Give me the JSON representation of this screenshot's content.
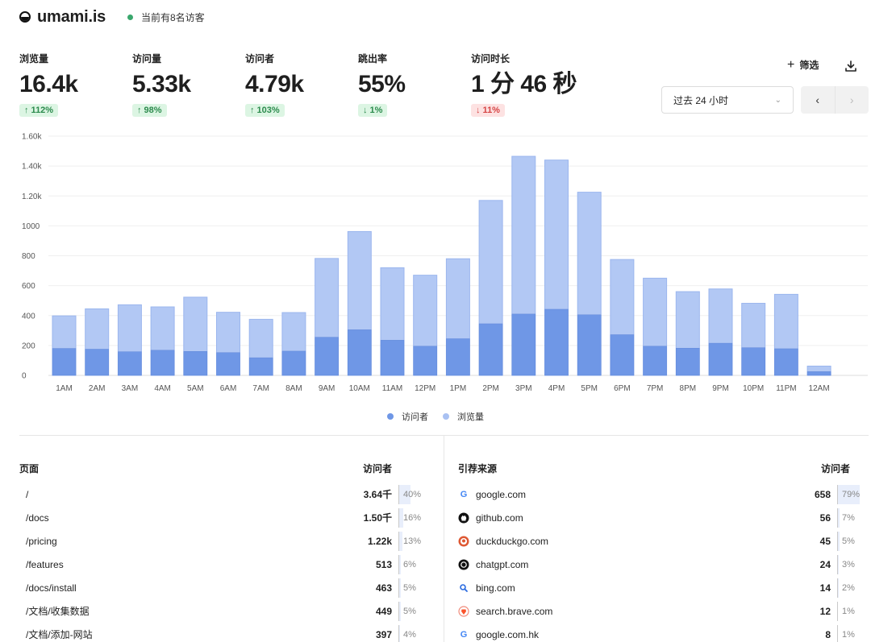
{
  "header": {
    "logo": "umami.is",
    "live": "当前有8名访客"
  },
  "metrics": [
    {
      "label": "浏览量",
      "value": "16.4k",
      "change": "↑ 112%",
      "dir": "up"
    },
    {
      "label": "访问量",
      "value": "5.33k",
      "change": "↑ 98%",
      "dir": "up"
    },
    {
      "label": "访问者",
      "value": "4.79k",
      "change": "↑ 103%",
      "dir": "up"
    },
    {
      "label": "跳出率",
      "value": "55%",
      "change": "↓ 1%",
      "dir": "up"
    },
    {
      "label": "访问时长",
      "value": "1 分 46 秒",
      "change": "↓ 11%",
      "dir": "down"
    }
  ],
  "controls": {
    "filter": "筛选",
    "filter_plus": "+",
    "date_range": "过去 24 小时",
    "prev": "‹",
    "next": "›"
  },
  "colors": {
    "visitors": "#6f97e6",
    "views": "#b2c8f4",
    "views_stroke": "#9bb6ee",
    "visitors_stroke": "#5f87d9"
  },
  "chart_data": {
    "type": "bar",
    "categories": [
      "1AM",
      "2AM",
      "3AM",
      "4AM",
      "5AM",
      "6AM",
      "7AM",
      "8AM",
      "9AM",
      "10AM",
      "11AM",
      "12PM",
      "1PM",
      "2PM",
      "3PM",
      "4PM",
      "5PM",
      "6PM",
      "7PM",
      "8PM",
      "9PM",
      "10PM",
      "11PM",
      "12AM"
    ],
    "series": [
      {
        "name": "访问者",
        "values": [
          180,
          175,
          158,
          168,
          160,
          152,
          118,
          162,
          255,
          305,
          235,
          195,
          245,
          345,
          410,
          442,
          405,
          272,
          195,
          182,
          215,
          185,
          178,
          25
        ]
      },
      {
        "name": "浏览量",
        "values": [
          398,
          445,
          472,
          458,
          523,
          422,
          375,
          420,
          782,
          962,
          720,
          670,
          780,
          1170,
          1465,
          1440,
          1225,
          775,
          650,
          560,
          578,
          482,
          542,
          62
        ]
      }
    ],
    "stacked": "overlay",
    "yticks": [
      "0",
      "200",
      "400",
      "600",
      "800",
      "1000",
      "1.20k",
      "1.40k",
      "1.60k"
    ],
    "ylim": [
      0,
      1600
    ],
    "grid": true,
    "legend": "bottom"
  },
  "pages": {
    "title": "页面",
    "col": "访问者",
    "rows": [
      {
        "label": "/",
        "count": "3.64千",
        "pct": "40%",
        "frac": 0.4
      },
      {
        "label": "/docs",
        "count": "1.50千",
        "pct": "16%",
        "frac": 0.16
      },
      {
        "label": "/pricing",
        "count": "1.22k",
        "pct": "13%",
        "frac": 0.13
      },
      {
        "label": "/features",
        "count": "513",
        "pct": "6%",
        "frac": 0.06
      },
      {
        "label": "/docs/install",
        "count": "463",
        "pct": "5%",
        "frac": 0.05
      },
      {
        "label": "/文档/收集数据",
        "count": "449",
        "pct": "5%",
        "frac": 0.05
      },
      {
        "label": "/文档/添加-网站",
        "count": "397",
        "pct": "4%",
        "frac": 0.04
      }
    ]
  },
  "referrers": {
    "title": "引荐来源",
    "col": "访问者",
    "rows": [
      {
        "label": "google.com",
        "count": "658",
        "pct": "79%",
        "frac": 0.79,
        "icon": "google-icon"
      },
      {
        "label": "github.com",
        "count": "56",
        "pct": "7%",
        "frac": 0.07,
        "icon": "github-icon"
      },
      {
        "label": "duckduckgo.com",
        "count": "45",
        "pct": "5%",
        "frac": 0.05,
        "icon": "duckduckgo-icon"
      },
      {
        "label": "chatgpt.com",
        "count": "24",
        "pct": "3%",
        "frac": 0.03,
        "icon": "chatgpt-icon"
      },
      {
        "label": "bing.com",
        "count": "14",
        "pct": "2%",
        "frac": 0.02,
        "icon": "bing-icon"
      },
      {
        "label": "search.brave.com",
        "count": "12",
        "pct": "1%",
        "frac": 0.01,
        "icon": "brave-icon"
      },
      {
        "label": "google.com.hk",
        "count": "8",
        "pct": "1%",
        "frac": 0.01,
        "icon": "google-icon"
      }
    ]
  }
}
